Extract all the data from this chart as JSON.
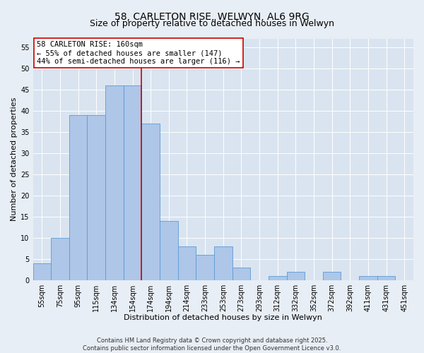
{
  "title": "58, CARLETON RISE, WELWYN, AL6 9RG",
  "subtitle": "Size of property relative to detached houses in Welwyn",
  "xlabel": "Distribution of detached houses by size in Welwyn",
  "ylabel": "Number of detached properties",
  "bar_labels": [
    "55sqm",
    "75sqm",
    "95sqm",
    "115sqm",
    "134sqm",
    "154sqm",
    "174sqm",
    "194sqm",
    "214sqm",
    "233sqm",
    "253sqm",
    "273sqm",
    "293sqm",
    "312sqm",
    "332sqm",
    "352sqm",
    "372sqm",
    "392sqm",
    "411sqm",
    "431sqm",
    "451sqm"
  ],
  "bar_values": [
    4,
    10,
    39,
    39,
    46,
    46,
    37,
    14,
    8,
    6,
    8,
    3,
    0,
    1,
    2,
    0,
    2,
    0,
    1,
    1,
    0
  ],
  "bar_color": "#aec6e8",
  "bar_edge_color": "#5b9bd5",
  "vline_pos": 5.5,
  "vline_color": "#cc0000",
  "ylim": [
    0,
    57
  ],
  "yticks": [
    0,
    5,
    10,
    15,
    20,
    25,
    30,
    35,
    40,
    45,
    50,
    55
  ],
  "annotation_title": "58 CARLETON RISE: 160sqm",
  "annotation_line2": "← 55% of detached houses are smaller (147)",
  "annotation_line3": "44% of semi-detached houses are larger (116) →",
  "annotation_box_color": "#ffffff",
  "annotation_box_edge": "#cc0000",
  "bg_color": "#e8eef5",
  "plot_bg_color": "#d9e4f0",
  "footer1": "Contains HM Land Registry data © Crown copyright and database right 2025.",
  "footer2": "Contains public sector information licensed under the Open Government Licence v3.0.",
  "title_fontsize": 10,
  "subtitle_fontsize": 9,
  "axis_label_fontsize": 8,
  "tick_fontsize": 7,
  "annotation_fontsize": 7.5,
  "footer_fontsize": 6
}
